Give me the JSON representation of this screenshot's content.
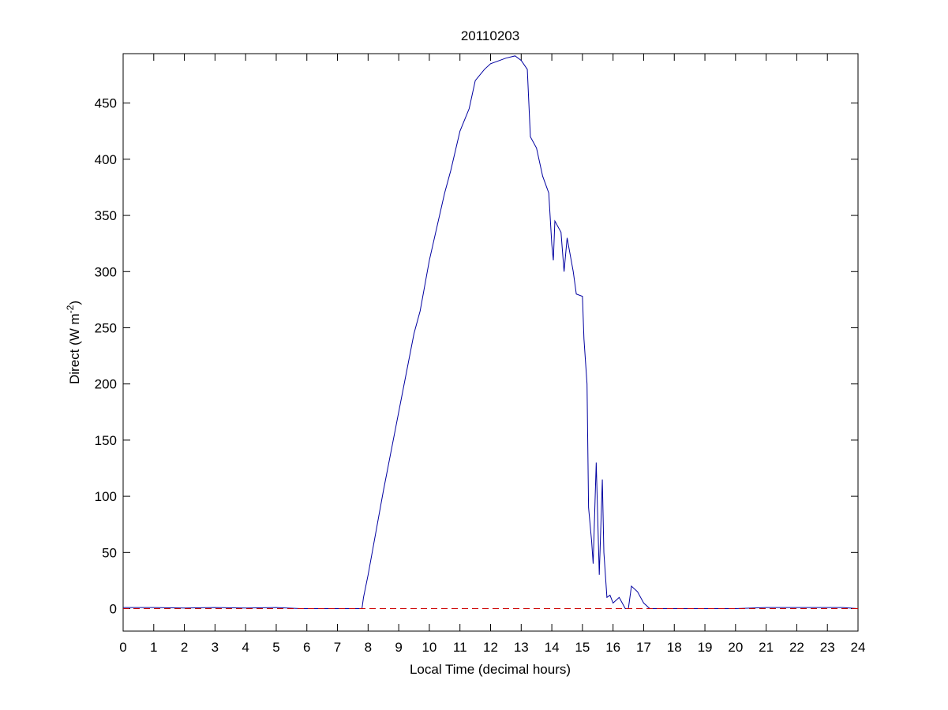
{
  "chart_data": {
    "type": "line",
    "title": "20110203",
    "xlabel": "Local Time (decimal hours)",
    "ylabel": {
      "text": "Direct (W m",
      "superscript": "-2",
      "suffix": ")"
    },
    "x": [
      0,
      1,
      2,
      3,
      4,
      5,
      5.8,
      6,
      7,
      7.8,
      7.85,
      8,
      8.5,
      9,
      9.5,
      9.7,
      10,
      10.5,
      10.7,
      11,
      11.3,
      11.5,
      11.8,
      12,
      12.5,
      12.8,
      13,
      13.2,
      13.3,
      13.5,
      13.7,
      13.9,
      14,
      14.05,
      14.1,
      14.3,
      14.4,
      14.5,
      14.7,
      14.8,
      15,
      15.05,
      15.15,
      15.2,
      15.3,
      15.35,
      15.45,
      15.55,
      15.65,
      15.7,
      15.8,
      15.9,
      16,
      16.2,
      16.4,
      16.5,
      16.6,
      16.8,
      17,
      17.2,
      18,
      20,
      21,
      22,
      23,
      23.5,
      24
    ],
    "series": [
      {
        "color": "#0000a0",
        "values": [
          1,
          1,
          0.5,
          1,
          0.5,
          1,
          0,
          0,
          0,
          0,
          10,
          30,
          105,
          175,
          245,
          265,
          310,
          370,
          390,
          425,
          445,
          470,
          480,
          485,
          490,
          492,
          488,
          480,
          420,
          410,
          385,
          370,
          324,
          310,
          345,
          335,
          300,
          330,
          300,
          280,
          278,
          240,
          200,
          90,
          60,
          40,
          130,
          30,
          115,
          50,
          10,
          12,
          5,
          10,
          0,
          0,
          20,
          15,
          5,
          0,
          0,
          0,
          1,
          1,
          1,
          1,
          0
        ]
      }
    ],
    "reference_line": {
      "value": 0,
      "color": "#cc0000",
      "dashed": true
    },
    "xlim": [
      0,
      24
    ],
    "xticks": [
      0,
      1,
      2,
      3,
      4,
      5,
      6,
      7,
      8,
      9,
      10,
      11,
      12,
      13,
      14,
      15,
      16,
      17,
      18,
      19,
      20,
      21,
      22,
      23,
      24
    ],
    "ylim": [
      -20,
      494
    ],
    "yticks": [
      0,
      50,
      100,
      150,
      200,
      250,
      300,
      350,
      400,
      450
    ],
    "grid": false
  }
}
